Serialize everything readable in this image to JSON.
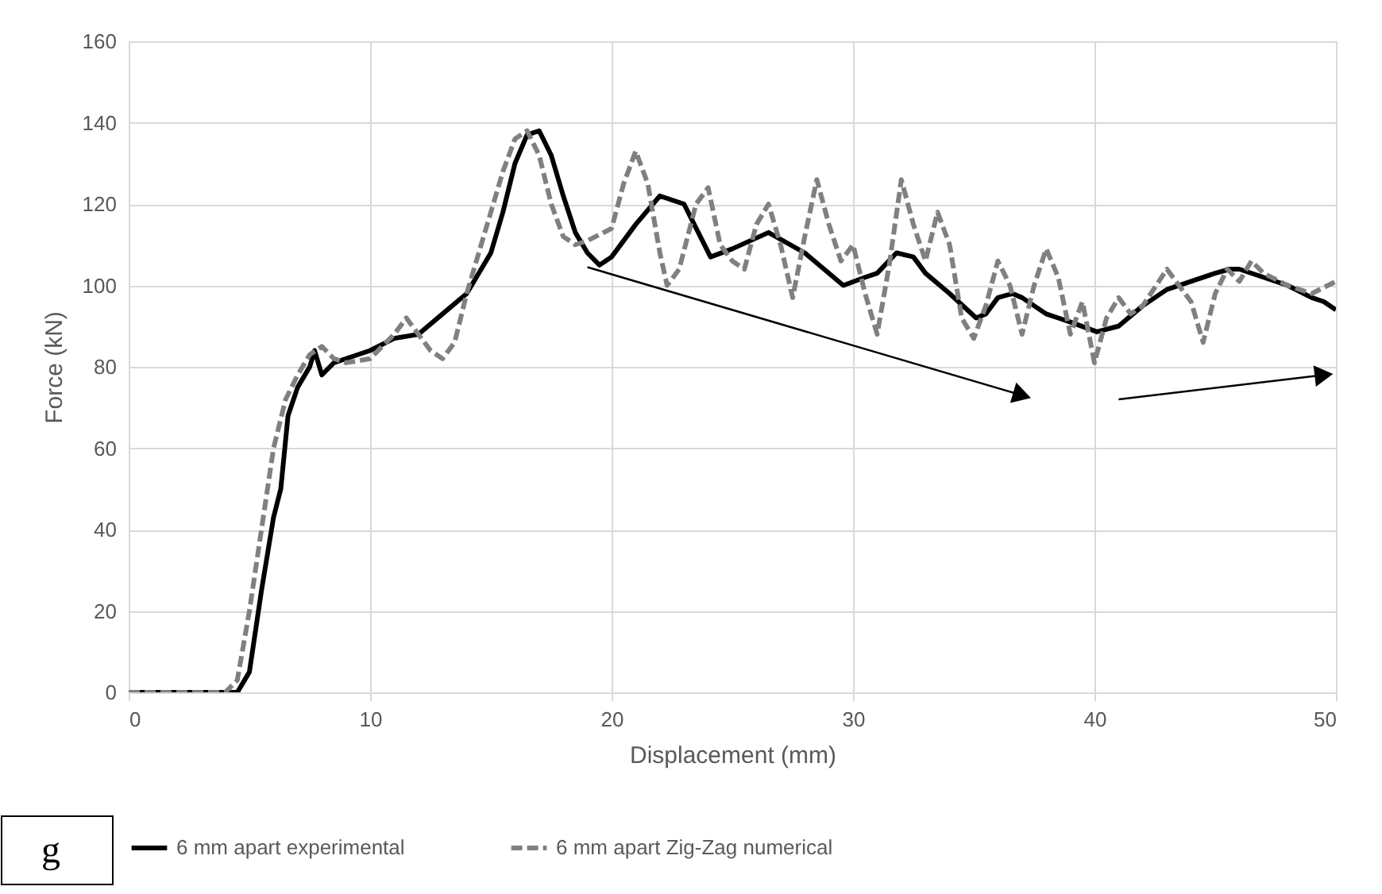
{
  "chart_data": {
    "type": "line",
    "xlabel": "Displacement (mm)",
    "ylabel": "Force (kN)",
    "xlim": [
      0,
      50
    ],
    "ylim": [
      0,
      160
    ],
    "xticks": [
      0,
      10,
      20,
      30,
      40,
      50
    ],
    "yticks": [
      0,
      20,
      40,
      60,
      80,
      100,
      120,
      140,
      160
    ],
    "grid": true,
    "legend": "bottom",
    "marker": "none",
    "annotations": [
      "g"
    ],
    "series": [
      {
        "name": "6 mm apart experimental",
        "color": "#000000",
        "line_style": "solid",
        "x": [
          0,
          4.5,
          5,
          5.5,
          6,
          6.3,
          6.6,
          7,
          7.5,
          7.7,
          8,
          8.5,
          9,
          10,
          11,
          12,
          13,
          14,
          15,
          15.5,
          16,
          16.5,
          17,
          17.5,
          18,
          18.5,
          19,
          19.5,
          20,
          21,
          22,
          23,
          24.1,
          25,
          26.5,
          28,
          29.6,
          30.5,
          31,
          31.8,
          32.5,
          33,
          34,
          35.1,
          35.5,
          36,
          36.6,
          37,
          38,
          38.5,
          39,
          40.1,
          41,
          42,
          43,
          44,
          45,
          45.6,
          46,
          47,
          48,
          49,
          49.5,
          50
        ],
        "values": [
          0,
          0,
          5,
          25,
          43,
          50,
          68,
          75,
          80,
          84,
          78,
          81,
          82,
          84,
          87,
          88,
          93,
          98,
          108,
          118,
          130,
          137,
          138,
          132,
          122,
          113,
          108,
          105,
          107,
          115,
          122,
          120,
          107,
          109,
          113,
          108,
          100,
          102,
          103,
          108,
          107,
          103,
          98,
          92,
          93,
          97,
          98,
          97,
          93,
          92,
          91,
          88.6,
          90,
          95,
          99,
          101,
          103,
          104,
          104,
          102,
          100,
          97,
          96,
          94
        ]
      },
      {
        "name": "6 mm apart Zig-Zag numerical",
        "color": "#808080",
        "line_style": "dashed",
        "x": [
          0,
          4,
          4.5,
          5,
          5.5,
          6,
          6.5,
          7,
          7.5,
          8,
          8.5,
          9,
          10,
          11,
          11.5,
          12,
          12.5,
          13,
          13.5,
          14,
          14.5,
          15,
          15.5,
          16,
          16.5,
          17,
          17.5,
          18,
          18.5,
          19,
          20,
          20.5,
          21,
          21.5,
          22,
          22.3,
          22.8,
          23.5,
          24,
          24.5,
          25,
          25.5,
          26,
          26.5,
          27,
          27.5,
          28,
          28.5,
          29,
          29.5,
          30,
          30.5,
          31,
          31.5,
          32,
          32.5,
          33,
          33.5,
          34,
          34.5,
          35,
          35.5,
          36,
          36.5,
          37,
          37.5,
          38,
          38.5,
          39,
          39.5,
          40,
          40.5,
          41,
          41.5,
          42,
          43,
          44,
          44.5,
          45,
          45.5,
          46,
          46.5,
          47,
          48,
          49,
          50
        ],
        "values": [
          0,
          0,
          3,
          20,
          40,
          60,
          72,
          78,
          83,
          85,
          82,
          81,
          82,
          88,
          92,
          88,
          84,
          82,
          86,
          98,
          108,
          118,
          128,
          136,
          138,
          132,
          120,
          112,
          110,
          111,
          114,
          125,
          133,
          125,
          108,
          100,
          104,
          120,
          124,
          110,
          106,
          104,
          115,
          120,
          110,
          97,
          112,
          126,
          115,
          106,
          110,
          98,
          88,
          105,
          126,
          115,
          106,
          118,
          110,
          92,
          87,
          95,
          106,
          100,
          88,
          100,
          109,
          102,
          88,
          96,
          81,
          92,
          97,
          93,
          95,
          104,
          96,
          86,
          98,
          104,
          101,
          106,
          103,
          100,
          98,
          101
        ]
      },
      {
        "type": "line",
        "color": "#000000",
        "line_style": "solid",
        "marker": "triangle",
        "x": [
          19,
          37
        ],
        "values": [
          104.5,
          73
        ]
      },
      {
        "type": "line",
        "color": "#000000",
        "line_style": "solid",
        "marker": "triangle",
        "x": [
          41,
          49.5
        ],
        "values": [
          72,
          78
        ]
      }
    ]
  }
}
